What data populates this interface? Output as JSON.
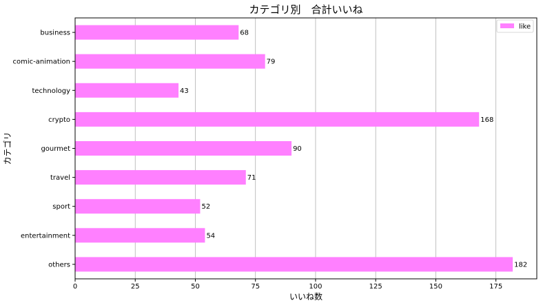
{
  "chart_data": {
    "type": "bar",
    "orientation": "horizontal",
    "title": "カテゴリ別　合計いいね",
    "xlabel": "いいね数",
    "ylabel": "カテゴリ",
    "categories": [
      "business",
      "comic-animation",
      "technology",
      "crypto",
      "gourmet",
      "travel",
      "sport",
      "entertainment",
      "others"
    ],
    "series": [
      {
        "name": "like",
        "values": [
          68,
          79,
          43,
          168,
          90,
          71,
          52,
          54,
          182
        ]
      }
    ],
    "xlim": [
      0,
      192
    ],
    "xticks": [
      0,
      25,
      50,
      75,
      100,
      125,
      150,
      175
    ],
    "grid": "x",
    "legend": "top-right",
    "colors": {
      "bar": "#ff80ff",
      "grid": "#b0b0b0",
      "axis": "#000000"
    }
  }
}
